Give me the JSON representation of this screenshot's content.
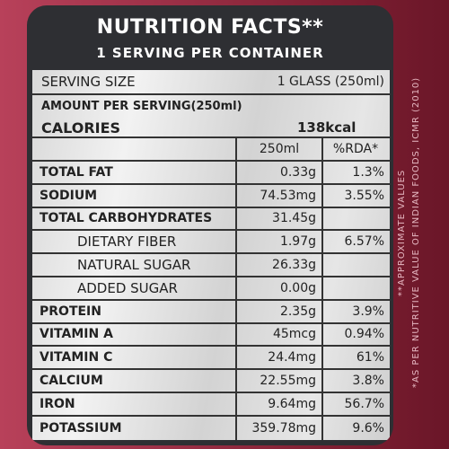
{
  "header": {
    "title": "NUTRITION FACTS**",
    "subtitle": "1 SERVING PER CONTAINER"
  },
  "serving": {
    "label": "SERVING SIZE",
    "value": "1 GLASS (250ml)"
  },
  "amount_per_serving": "AMOUNT PER SERVING(250ml)",
  "calories": {
    "label": "CALORIES",
    "value": "138kcal"
  },
  "columns": [
    "250ml",
    "%RDA*"
  ],
  "nutrients": [
    {
      "name": "TOTAL FAT",
      "amount": "0.33g",
      "rda": "1.3%"
    },
    {
      "name": "SODIUM",
      "amount": "74.53mg",
      "rda": "3.55%"
    },
    {
      "name": "TOTAL CARBOHYDRATES",
      "amount": "31.45g",
      "rda": ""
    },
    {
      "name": "DIETARY FIBER",
      "amount": "1.97g",
      "rda": "6.57%"
    },
    {
      "name": "NATURAL SUGAR",
      "amount": "26.33g",
      "rda": ""
    },
    {
      "name": "ADDED SUGAR",
      "amount": "0.00g",
      "rda": ""
    },
    {
      "name": "PROTEIN",
      "amount": "2.35g",
      "rda": "3.9%"
    },
    {
      "name": "VITAMIN A",
      "amount": "45mcg",
      "rda": "0.94%"
    },
    {
      "name": "VITAMIN C",
      "amount": "24.4mg",
      "rda": "61%"
    },
    {
      "name": "CALCIUM",
      "amount": "22.55mg",
      "rda": "3.8%"
    },
    {
      "name": "IRON",
      "amount": "9.64mg",
      "rda": "56.7%"
    },
    {
      "name": "POTASSIUM",
      "amount": "359.78mg",
      "rda": "9.6%"
    }
  ],
  "footnotes": {
    "approx": "**APPROXIMATE VALUES",
    "source": "*AS PER NUTRITIVE VALUE OF INDIAN FOODS, ICMR (2010)"
  },
  "colors": {
    "background": "#9e3148",
    "panel": "#2e2f33",
    "table": "#e4e4e4"
  }
}
